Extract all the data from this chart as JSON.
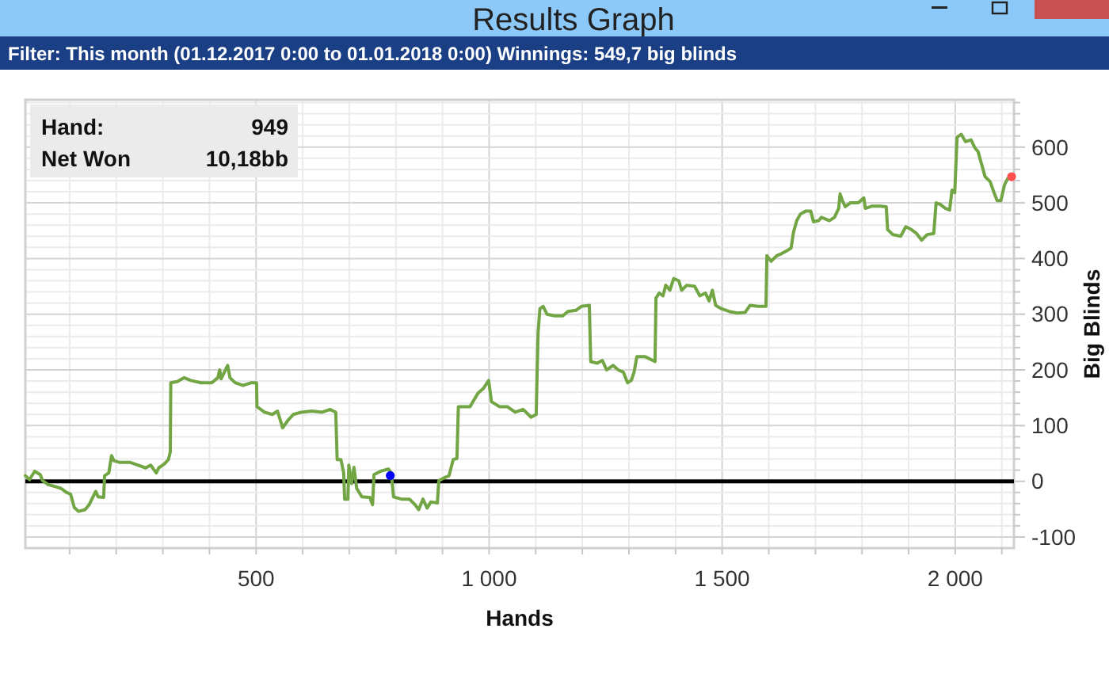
{
  "chart_data": {
    "type": "line",
    "title": "Results Graph",
    "subtitle": "Filter: This month (01.12.2017 0:00 to 01.01.2018 0:00) Winnings: 549,7 big blinds",
    "xlabel": "Hands",
    "ylabel": "Big Blinds",
    "annotations": [
      "Hand:",
      "949",
      "Net Won",
      "10,18bb"
    ],
    "xlim": [
      5,
      2126
    ],
    "ylim": [
      -120,
      685
    ],
    "xticks": [
      {
        "value": 100,
        "label": null
      },
      {
        "value": 200,
        "label": null
      },
      {
        "value": 300,
        "label": null
      },
      {
        "value": 400,
        "label": null
      },
      500,
      {
        "value": 600,
        "label": null
      },
      {
        "value": 700,
        "label": null
      },
      {
        "value": 800,
        "label": null
      },
      {
        "value": 900,
        "label": null
      },
      {
        "value": 1000,
        "label": "1 000"
      },
      {
        "value": 1100,
        "label": null
      },
      {
        "value": 1200,
        "label": null
      },
      {
        "value": 1300,
        "label": null
      },
      {
        "value": 1400,
        "label": null
      },
      {
        "value": 1500,
        "label": "1 500"
      },
      {
        "value": 1600,
        "label": null
      },
      {
        "value": 1700,
        "label": null
      },
      {
        "value": 1800,
        "label": null
      },
      {
        "value": 1900,
        "label": null
      },
      {
        "value": 2000,
        "label": "2 000"
      },
      {
        "value": 2100,
        "label": null
      }
    ],
    "yticks": [
      -100,
      {
        "value": -80,
        "label": null
      },
      {
        "value": -60,
        "label": null
      },
      {
        "value": -40,
        "label": null
      },
      {
        "value": -20,
        "label": null
      },
      0,
      {
        "value": 20,
        "label": null
      },
      {
        "value": 40,
        "label": null
      },
      {
        "value": 60,
        "label": null
      },
      {
        "value": 80,
        "label": null
      },
      100,
      {
        "value": 120,
        "label": null
      },
      {
        "value": 140,
        "label": null
      },
      {
        "value": 160,
        "label": null
      },
      {
        "value": 180,
        "label": null
      },
      200,
      {
        "value": 220,
        "label": null
      },
      {
        "value": 240,
        "label": null
      },
      {
        "value": 260,
        "label": null
      },
      {
        "value": 280,
        "label": null
      },
      300,
      {
        "value": 320,
        "label": null
      },
      {
        "value": 340,
        "label": null
      },
      {
        "value": 360,
        "label": null
      },
      {
        "value": 380,
        "label": null
      },
      400,
      {
        "value": 420,
        "label": null
      },
      {
        "value": 440,
        "label": null
      },
      {
        "value": 460,
        "label": null
      },
      {
        "value": 480,
        "label": null
      },
      500,
      {
        "value": 520,
        "label": null
      },
      {
        "value": 540,
        "label": null
      },
      {
        "value": 560,
        "label": null
      },
      {
        "value": 580,
        "label": null
      },
      600,
      {
        "value": 620,
        "label": null
      },
      {
        "value": 640,
        "label": null
      },
      {
        "value": 660,
        "label": null
      },
      {
        "value": 680,
        "label": null
      }
    ],
    "grid": true,
    "ref_lines": [
      {
        "axis": "y",
        "value": 0,
        "color": "#000000"
      }
    ],
    "series": [
      {
        "color": "#72a544",
        "x": [
          5,
          14,
          25,
          37,
          42,
          54,
          71,
          82,
          93,
          102,
          110,
          119,
          133,
          142,
          150,
          156,
          161,
          173,
          175,
          184,
          190,
          195,
          206,
          229,
          246,
          263,
          274,
          286,
          291,
          303,
          312,
          316,
          317,
          331,
          346,
          360,
          382,
          405,
          418,
          422,
          425,
          439,
          444,
          455,
          472,
          490,
          501,
          502,
          518,
          535,
          546,
          557,
          569,
          580,
          597,
          620,
          642,
          659,
          671,
          674,
          682,
          688,
          690,
          697,
          699,
          705,
          710,
          716,
          727,
          744,
          750,
          753,
          767,
          784,
          790,
          795,
          812,
          829,
          841,
          849,
          858,
          867,
          875,
          889,
          892,
          903,
          914,
          923,
          931,
          934,
          959,
          976,
          988,
          999,
          1005,
          1022,
          1039,
          1056,
          1073,
          1084,
          1090,
          1101,
          1105,
          1109,
          1116,
          1124,
          1141,
          1158,
          1169,
          1186,
          1198,
          1215,
          1218,
          1232,
          1243,
          1252,
          1266,
          1277,
          1288,
          1297,
          1305,
          1311,
          1317,
          1334,
          1351,
          1356,
          1358,
          1365,
          1373,
          1379,
          1388,
          1396,
          1407,
          1413,
          1424,
          1441,
          1452,
          1464,
          1472,
          1479,
          1486,
          1498,
          1515,
          1532,
          1549,
          1560,
          1577,
          1594,
          1596,
          1605,
          1617,
          1628,
          1639,
          1648,
          1653,
          1660,
          1668,
          1679,
          1690,
          1696,
          1707,
          1713,
          1730,
          1741,
          1750,
          1753,
          1758,
          1764,
          1775,
          1792,
          1804,
          1807,
          1821,
          1838,
          1852,
          1855,
          1866,
          1883,
          1894,
          1906,
          1917,
          1928,
          1940,
          1954,
          1959,
          1968,
          1979,
          1988,
          1993,
          1999,
          2004,
          2013,
          2022,
          2034,
          2042,
          2049,
          2056,
          2064,
          2075,
          2083,
          2090,
          2098,
          2106,
          2113,
          2121
        ],
        "values": [
          10,
          3,
          18,
          12,
          1,
          -6,
          -10,
          -13,
          -20,
          -23,
          -47,
          -54,
          -51,
          -42,
          -28,
          -18,
          -28,
          -29,
          10,
          15,
          46,
          37,
          34,
          34,
          29,
          24,
          29,
          15,
          24,
          31,
          39,
          53,
          177,
          179,
          186,
          181,
          177,
          177,
          186,
          200,
          184,
          208,
          186,
          177,
          172,
          177,
          177,
          134,
          124,
          120,
          126,
          96,
          110,
          120,
          124,
          126,
          124,
          129,
          124,
          39,
          39,
          15,
          -32,
          -32,
          29,
          -4,
          25,
          -13,
          -28,
          -29,
          -42,
          12,
          18,
          22,
          15,
          -28,
          -32,
          -32,
          -42,
          -51,
          -32,
          -48,
          -37,
          -39,
          1,
          6,
          10,
          39,
          41,
          134,
          134,
          158,
          167,
          181,
          143,
          134,
          134,
          124,
          129,
          120,
          115,
          120,
          267,
          310,
          314,
          300,
          297,
          297,
          305,
          307,
          314,
          316,
          215,
          212,
          217,
          200,
          208,
          200,
          196,
          177,
          181,
          196,
          224,
          224,
          217,
          215,
          329,
          338,
          333,
          352,
          343,
          364,
          360,
          343,
          352,
          350,
          333,
          338,
          324,
          343,
          316,
          310,
          305,
          302,
          303,
          316,
          314,
          314,
          405,
          395,
          405,
          409,
          414,
          419,
          447,
          468,
          480,
          485,
          485,
          466,
          468,
          474,
          468,
          474,
          490,
          516,
          504,
          493,
          500,
          500,
          509,
          490,
          494,
          494,
          493,
          452,
          443,
          440,
          457,
          452,
          445,
          433,
          443,
          445,
          500,
          497,
          490,
          487,
          523,
          518,
          618,
          623,
          610,
          613,
          599,
          592,
          571,
          547,
          538,
          519,
          504,
          504,
          533,
          544,
          544
        ]
      },
      {
        "type": "scatter",
        "marker": "circle",
        "color": "#0000ff",
        "x": [
          788
        ],
        "values": [
          10.18
        ]
      },
      {
        "type": "scatter",
        "marker": "circle",
        "color": "#ff5050",
        "x": [
          2121
        ],
        "values": [
          547
        ]
      }
    ]
  }
}
